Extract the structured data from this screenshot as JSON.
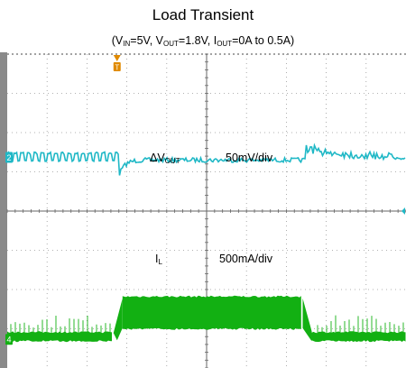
{
  "title": "Load Transient",
  "subtitle": {
    "open": "(V",
    "vin_sub": "IN",
    "vin_val": "=5V, V",
    "vout_sub": "OUT",
    "vout_val": "=1.8V, I",
    "iout_sub": "OUT",
    "iout_val": "=0A to 0.5A)"
  },
  "chart_data": {
    "type": "line",
    "title": "Load Transient",
    "subtitle": "(VIN=5V, VOUT=1.8V, IOUT=0A to 0.5A)",
    "grid": true,
    "divisions": {
      "x": 10,
      "y": 8
    },
    "channels": [
      {
        "id": "2",
        "name_prefix": "ΔV",
        "name_sub": "OUT",
        "scale": "50mV/div",
        "color": "#1fb8c6",
        "baseline_div": 5.3,
        "events": [
          {
            "x_div": 2.8,
            "change": "undershoot",
            "amplitude_div": 0.4
          },
          {
            "x_div": 7.5,
            "change": "overshoot",
            "amplitude_div": 0.3
          }
        ]
      },
      {
        "id": "4",
        "name_prefix": "I",
        "name_sub": "L",
        "scale": "500mA/div",
        "color": "#12b012",
        "baseline_div": 0.8,
        "levels": [
          {
            "x_start_div": 0,
            "x_end_div": 2.8,
            "level_div": 0
          },
          {
            "x_start_div": 2.8,
            "x_end_div": 7.5,
            "level_div": 1.0
          },
          {
            "x_start_div": 7.5,
            "x_end_div": 10,
            "level_div": 0
          }
        ]
      }
    ],
    "trigger_marker": {
      "label": "T",
      "x_div": 2.8,
      "color": "#e08a00"
    },
    "colors": {
      "grid": "#999999",
      "trace1": "#1fb8c6",
      "trace2": "#12b012",
      "frame": "#7a7a7a"
    }
  }
}
